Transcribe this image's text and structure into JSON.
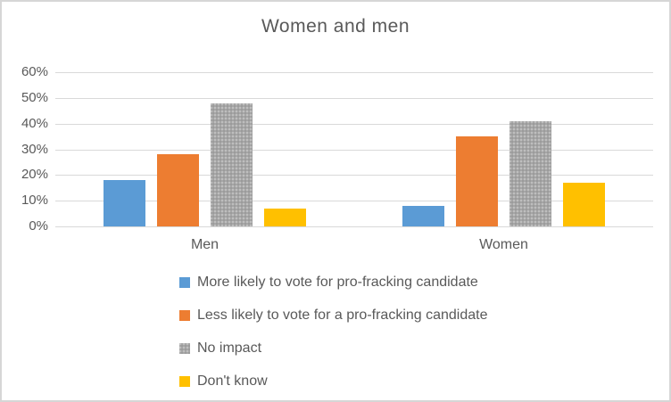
{
  "title": "Women and men",
  "colors": {
    "series_blue": "#5B9BD5",
    "series_orange": "#ED7D31",
    "series_gray": "#A5A5A5",
    "series_yellow": "#FFC000",
    "text_gray": "#595959",
    "gridline": "#D9D9D9",
    "chart_border": "#D6D6D6"
  },
  "chart_data": {
    "type": "bar",
    "title": "Women and men",
    "categories": [
      "Men",
      "Women"
    ],
    "series": [
      {
        "name": "More likely to vote for pro-fracking candidate",
        "color": "#5B9BD5",
        "pattern": false,
        "values": [
          18,
          8
        ]
      },
      {
        "name": "Less likely to vote for a pro-fracking candidate",
        "color": "#ED7D31",
        "pattern": false,
        "values": [
          28,
          35
        ]
      },
      {
        "name": "No impact",
        "color": "#A5A5A5",
        "pattern": true,
        "values": [
          48,
          41
        ]
      },
      {
        "name": "Don't know",
        "color": "#FFC000",
        "pattern": false,
        "values": [
          7,
          17
        ]
      }
    ],
    "xlabel": "",
    "ylabel": "",
    "ylim": [
      0,
      60
    ],
    "yticks": [
      "0%",
      "10%",
      "20%",
      "30%",
      "40%",
      "50%",
      "60%"
    ],
    "grid": true,
    "legend_position": "bottom-left"
  }
}
